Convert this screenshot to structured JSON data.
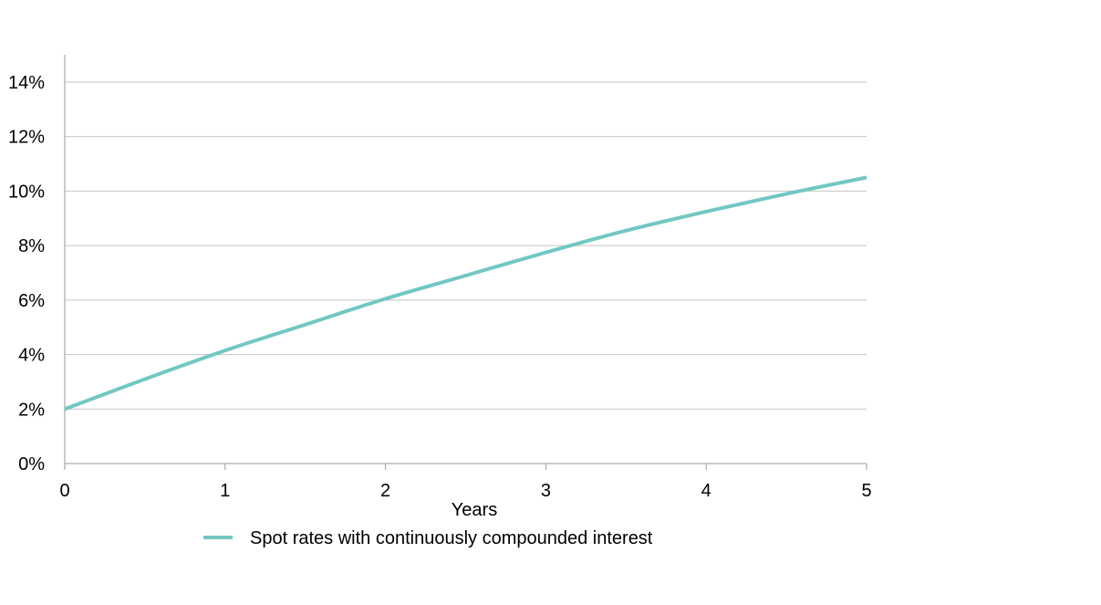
{
  "chart_data": {
    "type": "line",
    "title": "",
    "xlabel": "Years",
    "ylabel": "",
    "xlim": [
      0,
      5
    ],
    "ylim": [
      0,
      15
    ],
    "x_ticks": [
      0,
      1,
      2,
      3,
      4,
      5
    ],
    "x_tick_labels": [
      "0",
      "1",
      "2",
      "3",
      "4",
      "5"
    ],
    "y_ticks": [
      0,
      2,
      4,
      6,
      8,
      10,
      12,
      14
    ],
    "y_tick_labels": [
      "0%",
      "2%",
      "4%",
      "6%",
      "8%",
      "10%",
      "12%",
      "14%"
    ],
    "grid": "horizontal",
    "legend_position": "bottom",
    "series": [
      {
        "name": "Spot rates with continuously compounded interest",
        "color": "#72c7c2",
        "x": [
          0,
          0.5,
          1,
          1.5,
          2,
          2.5,
          3,
          3.5,
          4,
          4.5,
          5
        ],
        "y": [
          2.0,
          3.1,
          4.15,
          5.1,
          6.05,
          6.9,
          7.75,
          8.55,
          9.25,
          9.9,
          10.5
        ]
      }
    ]
  }
}
